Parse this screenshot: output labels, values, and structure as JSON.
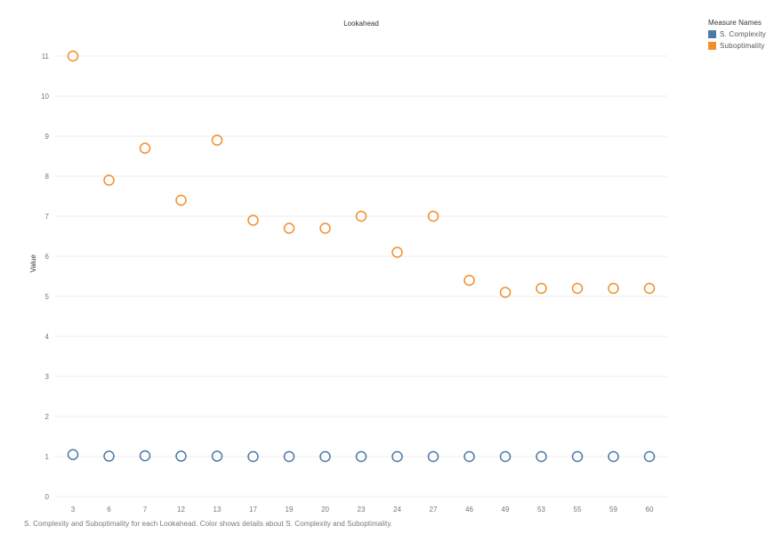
{
  "chart_data": {
    "type": "scatter",
    "title": "Lookahead",
    "xlabel": "",
    "ylabel": "Value",
    "categories": [
      "3",
      "6",
      "7",
      "12",
      "13",
      "17",
      "19",
      "20",
      "23",
      "24",
      "27",
      "46",
      "49",
      "53",
      "55",
      "59",
      "60"
    ],
    "ylim": [
      0,
      11.5
    ],
    "yticks": [
      0,
      1,
      2,
      3,
      4,
      5,
      6,
      7,
      8,
      9,
      10,
      11
    ],
    "grid": true,
    "legend_position": "top-right",
    "legend_title": "Measure Names",
    "series": [
      {
        "name": "S. Complexity",
        "color": "#4e79a7",
        "values": [
          1.05,
          1.01,
          1.02,
          1.01,
          1.01,
          1.0,
          1.0,
          1.0,
          1.0,
          1.0,
          1.0,
          1.0,
          1.0,
          1.0,
          1.0,
          1.0,
          1.0
        ]
      },
      {
        "name": "Suboptimality",
        "color": "#f28e2b",
        "values": [
          11.0,
          7.9,
          8.7,
          7.4,
          8.9,
          6.9,
          6.7,
          6.7,
          7.0,
          6.1,
          7.0,
          5.4,
          5.1,
          5.2,
          5.2,
          5.2,
          5.2
        ]
      }
    ],
    "caption": "S. Complexity and Suboptimality for each Lookahead.  Color shows details about S. Complexity and Suboptimality."
  }
}
